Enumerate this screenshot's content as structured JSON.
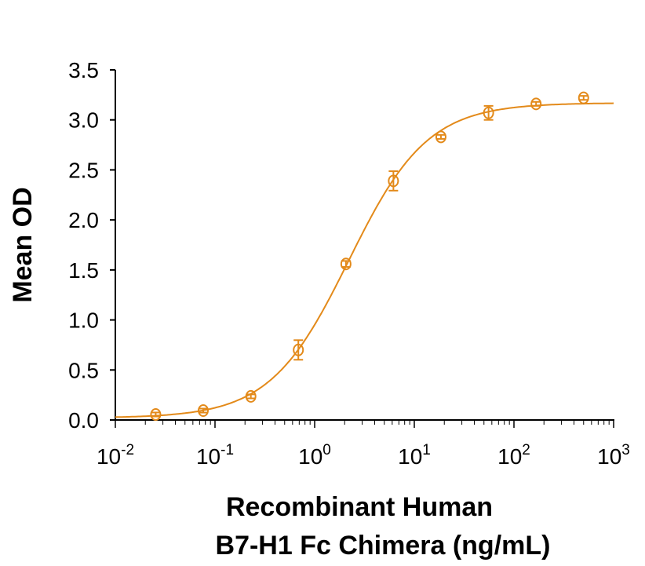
{
  "chart_data": {
    "type": "scatter",
    "title": "",
    "xlabel_lines": [
      "Recombinant Human",
      "B7-H1 Fc Chimera (ng/mL)"
    ],
    "ylabel": "Mean OD",
    "x_scale": "log",
    "xlim": [
      0.01,
      1000
    ],
    "ylim": [
      0,
      3.5
    ],
    "x_ticks": [
      {
        "base": "10",
        "exp": "-2"
      },
      {
        "base": "10",
        "exp": "-1"
      },
      {
        "base": "10",
        "exp": "0"
      },
      {
        "base": "10",
        "exp": "1"
      },
      {
        "base": "10",
        "exp": "2"
      },
      {
        "base": "10",
        "exp": "3"
      }
    ],
    "y_ticks": [
      "0.0",
      "0.5",
      "1.0",
      "1.5",
      "2.0",
      "2.5",
      "3.0",
      "3.5"
    ],
    "grid": false,
    "color": "#E38A1A",
    "series": [
      {
        "marker": "open-circle",
        "fit_line": "4-parameter logistic",
        "x": [
          0.0254,
          0.0762,
          0.229,
          0.686,
          2.06,
          6.17,
          18.5,
          55.6,
          166.7,
          500
        ],
        "y": [
          0.055,
          0.094,
          0.236,
          0.7,
          1.56,
          2.39,
          2.83,
          3.07,
          3.16,
          3.22
        ],
        "error": [
          0.02,
          0.02,
          0.02,
          0.098,
          0.03,
          0.097,
          0.02,
          0.07,
          0.02,
          0.02
        ]
      }
    ]
  }
}
